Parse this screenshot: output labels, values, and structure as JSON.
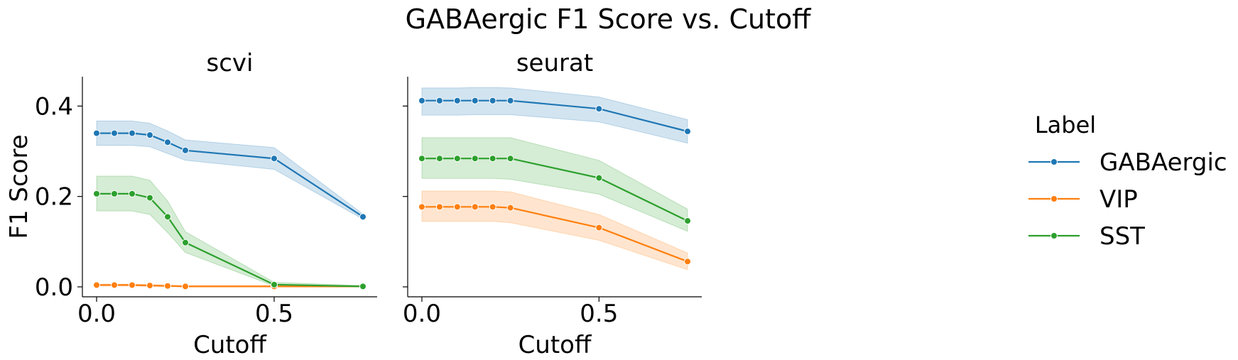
{
  "figure": {
    "title": "GABAergic F1 Score vs. Cutoff"
  },
  "legend": {
    "title": "Label",
    "placement": "right",
    "entries": [
      {
        "name": "GABAergic",
        "color": "#1f77b4"
      },
      {
        "name": "VIP",
        "color": "#ff7f0e"
      },
      {
        "name": "SST",
        "color": "#2ca02c"
      }
    ]
  },
  "chart_data": [
    {
      "type": "line",
      "title": "scvi",
      "xlabel": "Cutoff",
      "ylabel": "F1 Score",
      "xlim": [
        -0.04,
        0.79
      ],
      "ylim": [
        -0.022,
        0.465
      ],
      "xticks": [
        0.0,
        0.5
      ],
      "xtick_labels": [
        "0.0",
        "0.5"
      ],
      "yticks": [
        0.0,
        0.2,
        0.4
      ],
      "ytick_labels": [
        "0.0",
        "0.2",
        "0.4"
      ],
      "grid": false,
      "x": [
        0.0,
        0.05,
        0.1,
        0.15,
        0.2,
        0.25,
        0.5,
        0.75
      ],
      "series": [
        {
          "name": "GABAergic",
          "color": "#1f77b4",
          "values": [
            0.34,
            0.34,
            0.34,
            0.336,
            0.32,
            0.302,
            0.284,
            0.155
          ],
          "ci_low": [
            0.313,
            0.313,
            0.313,
            0.31,
            0.295,
            0.28,
            0.26,
            0.15
          ],
          "ci_high": [
            0.367,
            0.367,
            0.367,
            0.362,
            0.345,
            0.325,
            0.308,
            0.161
          ]
        },
        {
          "name": "VIP",
          "color": "#ff7f0e",
          "values": [
            0.004,
            0.004,
            0.004,
            0.003,
            0.002,
            0.001,
            0.001,
            0.001
          ],
          "ci_low": [
            0.002,
            0.002,
            0.002,
            0.001,
            0.001,
            0.0,
            0.0,
            0.0
          ],
          "ci_high": [
            0.006,
            0.006,
            0.006,
            0.005,
            0.004,
            0.003,
            0.003,
            0.002
          ]
        },
        {
          "name": "SST",
          "color": "#2ca02c",
          "values": [
            0.206,
            0.206,
            0.206,
            0.197,
            0.155,
            0.098,
            0.005,
            0.001
          ],
          "ci_low": [
            0.168,
            0.168,
            0.168,
            0.16,
            0.12,
            0.076,
            0.002,
            0.0
          ],
          "ci_high": [
            0.245,
            0.245,
            0.245,
            0.236,
            0.19,
            0.122,
            0.01,
            0.003
          ]
        }
      ]
    },
    {
      "type": "line",
      "title": "seurat",
      "xlabel": "Cutoff",
      "ylabel": "",
      "xlim": [
        -0.04,
        0.79
      ],
      "ylim": [
        -0.022,
        0.465
      ],
      "xticks": [
        0.0,
        0.5
      ],
      "xtick_labels": [
        "0.0",
        "0.5"
      ],
      "yticks": [
        0.0,
        0.2,
        0.4
      ],
      "ytick_labels": [
        "",
        "",
        ""
      ],
      "grid": false,
      "x": [
        0.0,
        0.05,
        0.1,
        0.15,
        0.2,
        0.25,
        0.5,
        0.75
      ],
      "series": [
        {
          "name": "GABAergic",
          "color": "#1f77b4",
          "values": [
            0.412,
            0.412,
            0.412,
            0.412,
            0.412,
            0.412,
            0.394,
            0.344
          ],
          "ci_low": [
            0.38,
            0.38,
            0.38,
            0.381,
            0.381,
            0.381,
            0.365,
            0.318
          ],
          "ci_high": [
            0.44,
            0.44,
            0.44,
            0.441,
            0.441,
            0.44,
            0.42,
            0.37
          ]
        },
        {
          "name": "VIP",
          "color": "#ff7f0e",
          "values": [
            0.177,
            0.177,
            0.177,
            0.177,
            0.177,
            0.175,
            0.131,
            0.056
          ],
          "ci_low": [
            0.145,
            0.145,
            0.145,
            0.145,
            0.145,
            0.142,
            0.103,
            0.038
          ],
          "ci_high": [
            0.212,
            0.212,
            0.212,
            0.212,
            0.212,
            0.21,
            0.16,
            0.075
          ]
        },
        {
          "name": "SST",
          "color": "#2ca02c",
          "values": [
            0.284,
            0.284,
            0.284,
            0.284,
            0.284,
            0.284,
            0.241,
            0.146
          ],
          "ci_low": [
            0.24,
            0.24,
            0.24,
            0.24,
            0.24,
            0.238,
            0.205,
            0.123
          ],
          "ci_high": [
            0.33,
            0.33,
            0.33,
            0.33,
            0.33,
            0.33,
            0.28,
            0.172
          ]
        }
      ]
    }
  ]
}
